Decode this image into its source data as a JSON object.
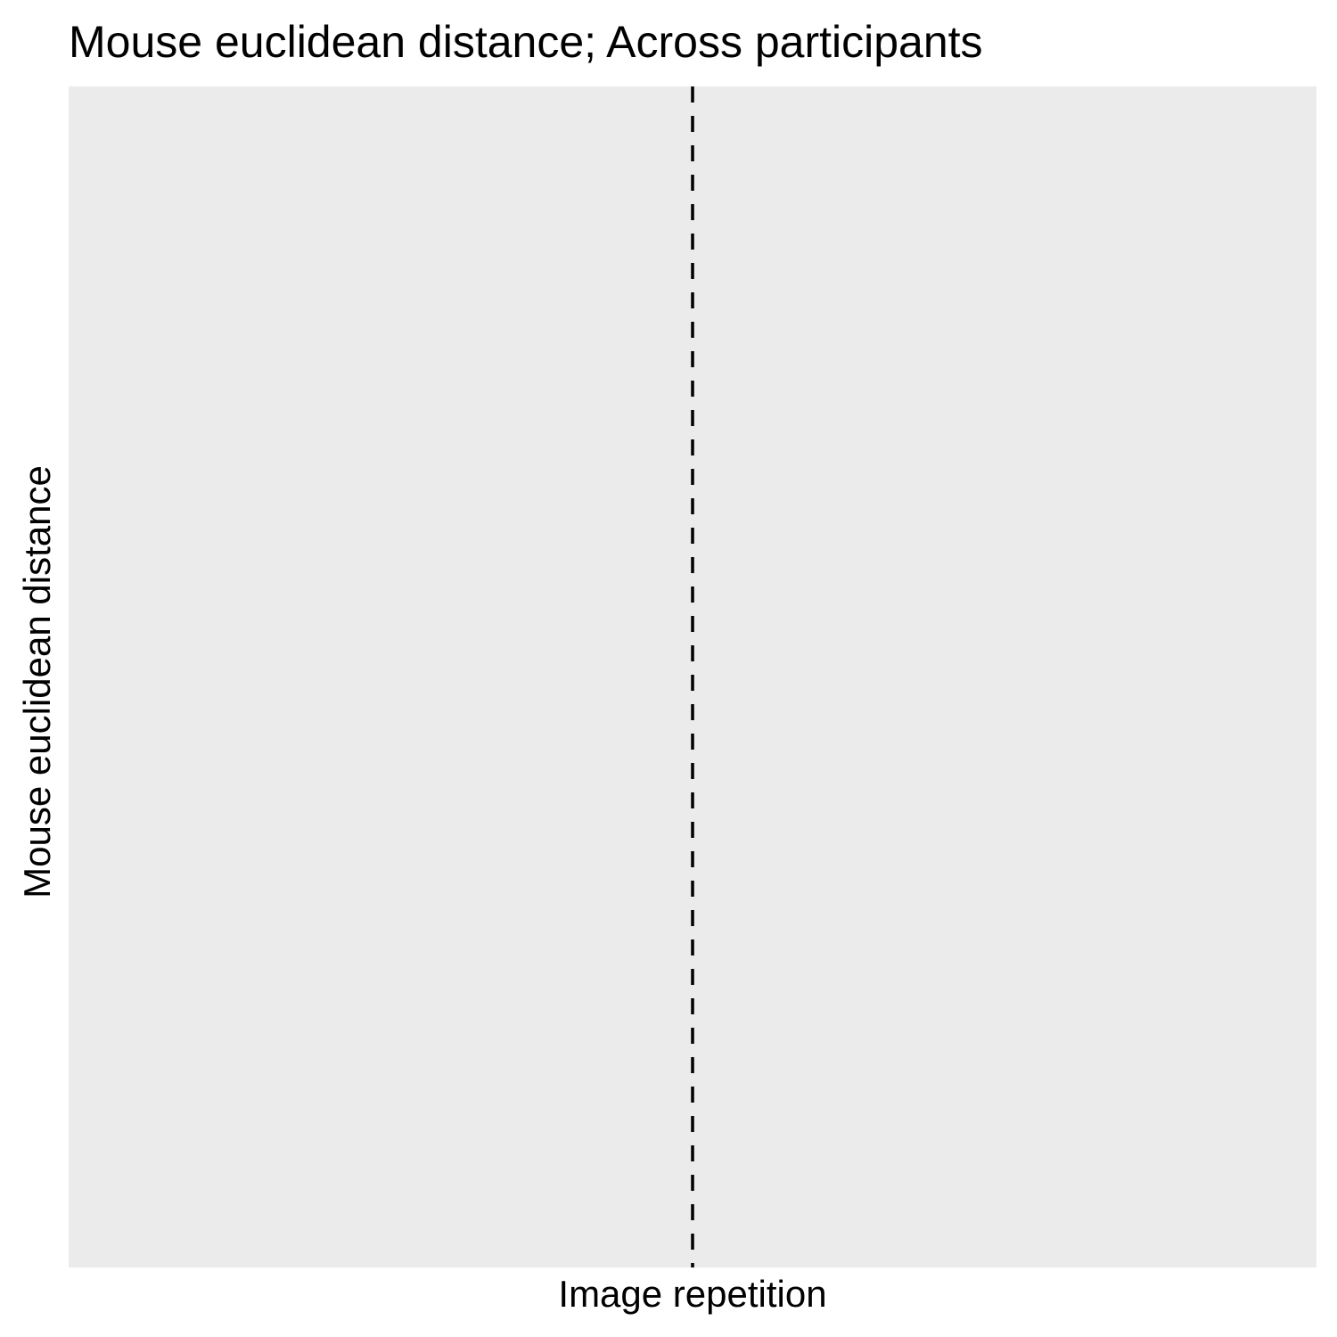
{
  "chart_data": {
    "type": "line",
    "title": "Mouse euclidean distance; Across participants",
    "xlabel": "Image repetition",
    "ylabel": "Mouse euclidean distance",
    "series": [],
    "reference_lines": [
      {
        "orientation": "vertical",
        "style": "dashed",
        "color": "#000000",
        "position": 0.5
      }
    ],
    "grid": false,
    "legend": "none",
    "background": "#ebebeb"
  }
}
